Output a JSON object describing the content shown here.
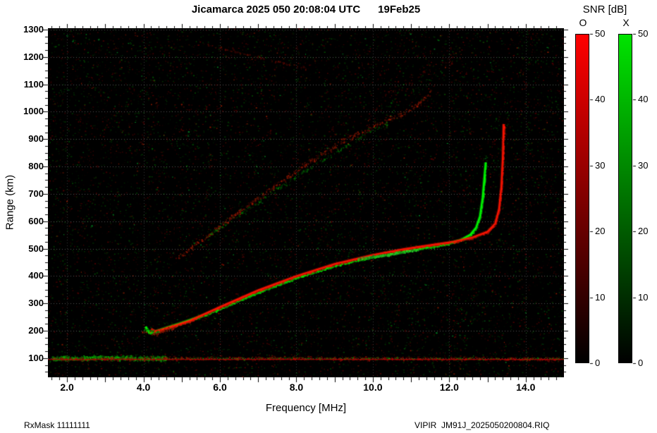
{
  "title": "Jicamarca 2025 050 20:08:04 UTC      19Feb25",
  "footer": {
    "left": "RxMask 11111111",
    "right": "VIPIR  JM91J_2025050200804.RIQ"
  },
  "colorbar": {
    "title": "SNR [dB]",
    "min": 0,
    "max": 50,
    "bars": [
      {
        "label": "O",
        "bottom_color": "#000000",
        "top_color": "#ff0000",
        "ticks": [
          0,
          10,
          20,
          30,
          40,
          50
        ]
      },
      {
        "label": "X",
        "bottom_color": "#000000",
        "top_color": "#00e400",
        "ticks": [
          0,
          10,
          20,
          30,
          40,
          50
        ]
      }
    ]
  },
  "chart_data": {
    "type": "heatmap",
    "title": "Jicamarca 2025 050 20:08:04 UTC  19Feb25",
    "xlabel": "Frequency [MHz]",
    "ylabel": "Range (km)",
    "xlim": [
      1.5,
      15.0
    ],
    "ylim": [
      30,
      1305
    ],
    "background": "#000000",
    "grid": {
      "color_h": "rgba(255,255,255,0.32)",
      "color_v": "rgba(255,255,255,0.22)"
    },
    "x_ticks": [
      2,
      4,
      6,
      8,
      10,
      12,
      14
    ],
    "x_tick_labels": [
      "2.0",
      "4.0",
      "6.0",
      "8.0",
      "10.0",
      "12.0",
      "14.0"
    ],
    "x_minor_step": 0.2,
    "y_ticks": [
      100,
      200,
      300,
      400,
      500,
      600,
      700,
      800,
      900,
      1000,
      1100,
      1200,
      1300
    ],
    "y_tick_labels": [
      "100",
      "200",
      "300",
      "400",
      "500",
      "600",
      "700",
      "800",
      "900",
      "1000",
      "1100",
      "1200",
      "1300"
    ],
    "y_minor_step": 25,
    "legend": {
      "O_mode_color": "#ff0000",
      "X_mode_color": "#00e400"
    },
    "noise": [
      {
        "color": "#ff0000",
        "count": 9000,
        "max_alpha": 0.3
      },
      {
        "color": "#00ff00",
        "count": 8000,
        "max_alpha": 0.26
      },
      {
        "color": "#ff3300",
        "count": 600,
        "max_alpha": 0.55
      },
      {
        "color": "#00ff44",
        "count": 450,
        "max_alpha": 0.5
      }
    ],
    "traces": [
      {
        "name": "e-layer-green",
        "color": "#00dd00",
        "width_km": 26,
        "density": 4.0,
        "alpha": 0.85,
        "points": [
          [
            1.6,
            100
          ],
          [
            3.0,
            103
          ],
          [
            4.6,
            100
          ]
        ]
      },
      {
        "name": "e-layer-red",
        "color": "#cc1100",
        "width_km": 18,
        "density": 1.4,
        "alpha": 0.7,
        "points": [
          [
            1.6,
            99
          ],
          [
            8.0,
            101
          ],
          [
            15.0,
            98
          ]
        ]
      },
      {
        "name": "e-layer-green-sparse",
        "color": "#00bb00",
        "width_km": 14,
        "density": 0.5,
        "alpha": 0.6,
        "points": [
          [
            4.6,
            101
          ],
          [
            15.0,
            100
          ]
        ]
      },
      {
        "name": "e-baseline",
        "style": "line",
        "color": "#cc0000",
        "alpha": 0.9,
        "points": [
          [
            1.5,
            95
          ],
          [
            15.0,
            95
          ]
        ]
      },
      {
        "name": "f-trace-x-green",
        "color": "#00ff00",
        "width_km": 10,
        "density": 2.5,
        "alpha": 0.95,
        "core": true,
        "points": [
          [
            4.05,
            215
          ],
          [
            4.15,
            192
          ],
          [
            4.3,
            197
          ],
          [
            4.6,
            211
          ],
          [
            5.0,
            229
          ],
          [
            5.5,
            253
          ],
          [
            6.0,
            281
          ],
          [
            6.5,
            312
          ],
          [
            7.0,
            342
          ],
          [
            7.5,
            369
          ],
          [
            8.0,
            394
          ],
          [
            8.5,
            417
          ],
          [
            9.0,
            438
          ],
          [
            9.5,
            456
          ],
          [
            10.0,
            471
          ],
          [
            10.5,
            484
          ],
          [
            11.0,
            496
          ],
          [
            11.5,
            507
          ],
          [
            12.0,
            520
          ],
          [
            12.3,
            532
          ],
          [
            12.55,
            551
          ],
          [
            12.7,
            577
          ],
          [
            12.8,
            618
          ],
          [
            12.87,
            685
          ],
          [
            12.92,
            765
          ],
          [
            12.95,
            815
          ]
        ]
      },
      {
        "name": "f-trace-o-red",
        "color": "#ff1500",
        "width_km": 10,
        "density": 2.3,
        "alpha": 0.95,
        "core": true,
        "points": [
          [
            4.2,
            207
          ],
          [
            4.3,
            198
          ],
          [
            4.5,
            205
          ],
          [
            4.8,
            218
          ],
          [
            5.2,
            236
          ],
          [
            6.0,
            287
          ],
          [
            7.0,
            348
          ],
          [
            8.0,
            400
          ],
          [
            9.0,
            444
          ],
          [
            10.0,
            477
          ],
          [
            10.8,
            498
          ],
          [
            11.5,
            513
          ],
          [
            12.1,
            525
          ],
          [
            12.6,
            541
          ],
          [
            13.0,
            562
          ],
          [
            13.2,
            592
          ],
          [
            13.3,
            645
          ],
          [
            13.36,
            725
          ],
          [
            13.4,
            840
          ],
          [
            13.42,
            955
          ]
        ]
      },
      {
        "name": "f-trace-green-bright",
        "color": "#33ff33",
        "width_km": 13,
        "density": 2.5,
        "alpha": 0.85,
        "points": [
          [
            9.6,
            464
          ],
          [
            10.4,
            480
          ],
          [
            11.2,
            498
          ]
        ]
      },
      {
        "name": "cusp-blob-red",
        "color": "#dd2200",
        "width_km": 26,
        "density": 1.6,
        "alpha": 0.7,
        "points": [
          [
            3.95,
            200
          ],
          [
            4.35,
            193
          ],
          [
            4.8,
            215
          ]
        ]
      },
      {
        "name": "cusp-blob-green",
        "color": "#00cc00",
        "width_km": 18,
        "density": 1.4,
        "alpha": 0.7,
        "points": [
          [
            4.0,
            205
          ],
          [
            4.4,
            197
          ]
        ]
      },
      {
        "name": "second-hop-red",
        "color": "#cc2200",
        "width_km": 30,
        "density": 1.1,
        "alpha": 0.75,
        "points": [
          [
            4.9,
            470
          ],
          [
            5.3,
            512
          ],
          [
            5.8,
            562
          ],
          [
            6.3,
            616
          ],
          [
            6.8,
            667
          ],
          [
            7.3,
            717
          ],
          [
            7.8,
            767
          ],
          [
            8.3,
            816
          ],
          [
            8.8,
            861
          ],
          [
            9.3,
            901
          ],
          [
            9.8,
            936
          ],
          [
            10.3,
            967
          ],
          [
            10.8,
            997
          ],
          [
            11.2,
            1032
          ],
          [
            11.5,
            1072
          ]
        ]
      },
      {
        "name": "second-hop-green",
        "color": "#00aa00",
        "width_km": 22,
        "density": 0.55,
        "alpha": 0.7,
        "points": [
          [
            5.6,
            540
          ],
          [
            6.2,
            595
          ],
          [
            6.8,
            652
          ],
          [
            7.4,
            710
          ],
          [
            8.0,
            765
          ],
          [
            8.6,
            818
          ],
          [
            9.2,
            868
          ],
          [
            9.8,
            920
          ],
          [
            10.4,
            958
          ]
        ]
      },
      {
        "name": "spread-cloud-red",
        "color": "#aa1100",
        "width_km": 90,
        "density": 0.4,
        "alpha": 0.6,
        "points": [
          [
            10.2,
            1045
          ],
          [
            10.9,
            1105
          ],
          [
            11.6,
            1165
          ],
          [
            12.2,
            1215
          ]
        ]
      },
      {
        "name": "spread-cloud-green",
        "color": "#009900",
        "width_km": 70,
        "density": 0.22,
        "alpha": 0.55,
        "points": [
          [
            10.4,
            1030
          ],
          [
            11.2,
            1090
          ],
          [
            11.9,
            1150
          ]
        ]
      },
      {
        "name": "top-streak-red",
        "color": "#991100",
        "width_km": 14,
        "density": 0.6,
        "alpha": 0.6,
        "points": [
          [
            5.6,
            1248
          ],
          [
            7.0,
            1200
          ],
          [
            8.3,
            1158
          ]
        ]
      }
    ]
  }
}
